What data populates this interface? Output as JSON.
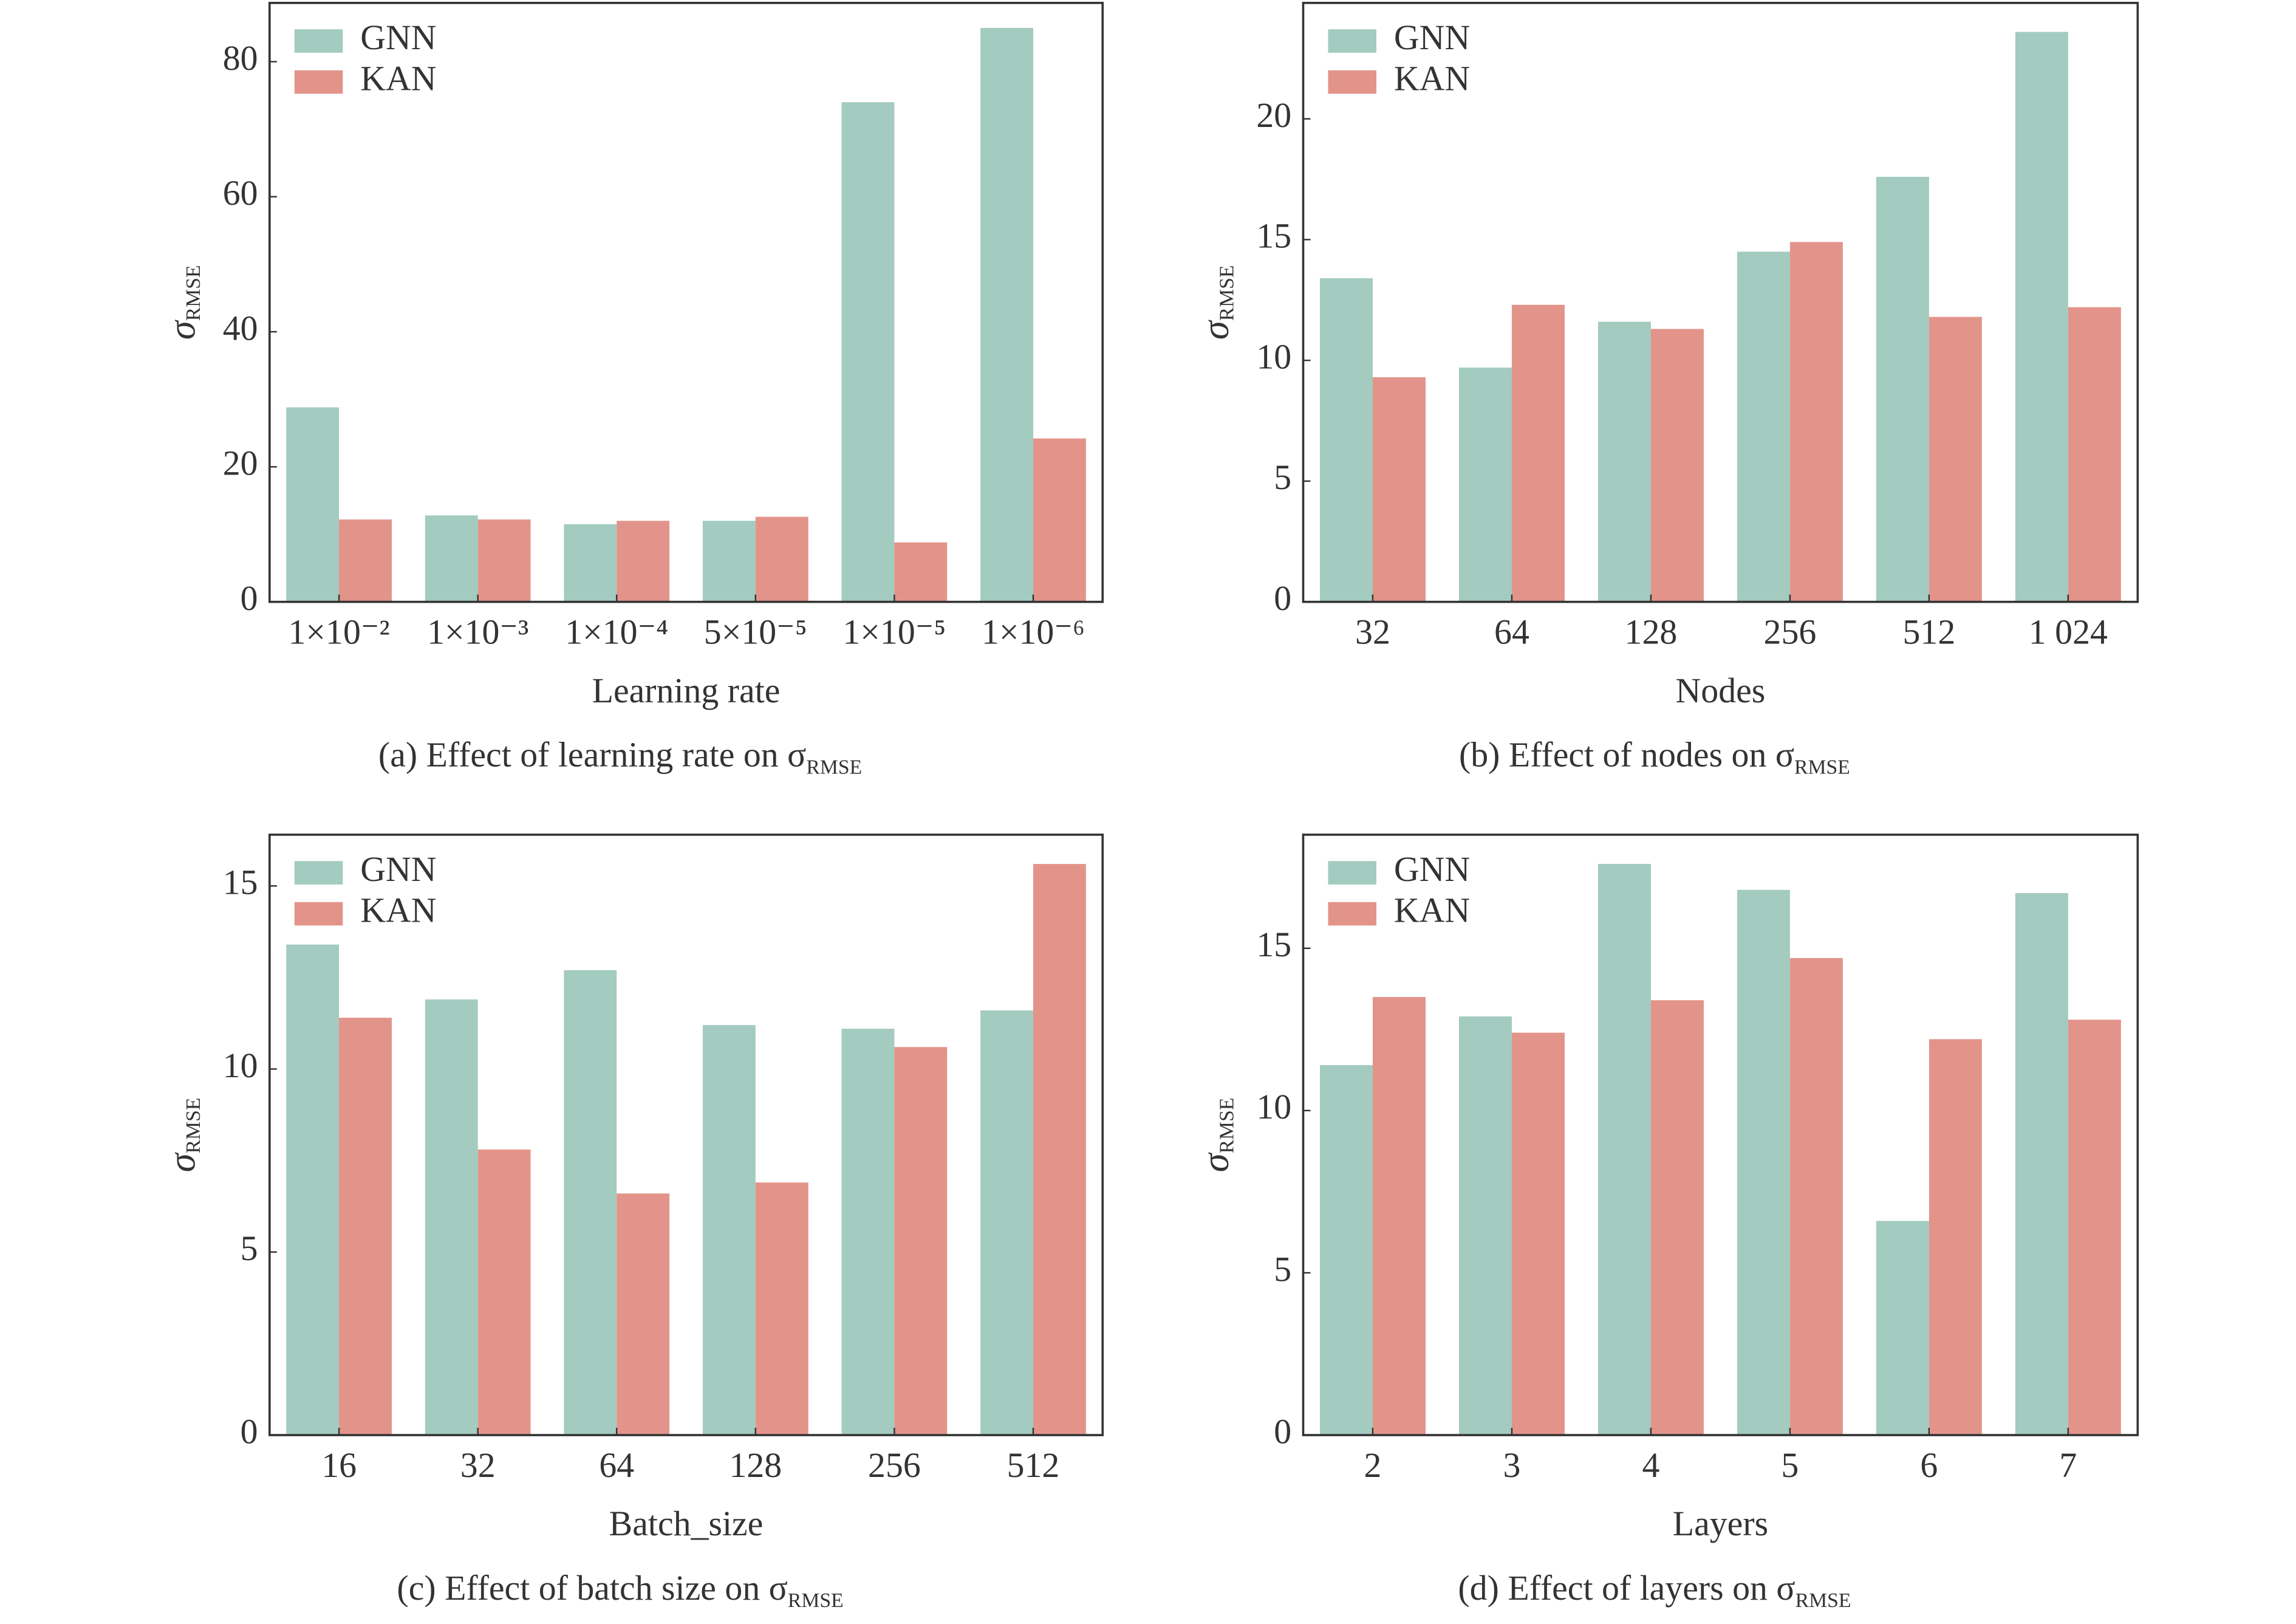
{
  "chart_data": [
    {
      "type": "bar",
      "xlabel": "Learning rate",
      "ylabel": "σ",
      "ylabel_sub": "RMSE",
      "caption": "(a) Effect of learning rate on σ",
      "caption_sub": "RMSE",
      "categories": [
        "1×10⁻²",
        "1×10⁻³",
        "1×10⁻⁴",
        "5×10⁻⁵",
        "1×10⁻⁵",
        "1×10⁻⁶"
      ],
      "series": [
        {
          "name": "GNN",
          "color": "#a3cbbf",
          "values": [
            28.8,
            12.8,
            11.5,
            12.0,
            74.0,
            85.0
          ]
        },
        {
          "name": "KAN",
          "color": "#e3948a",
          "values": [
            12.2,
            12.2,
            12.0,
            12.6,
            8.8,
            24.2
          ]
        }
      ],
      "ylim": [
        0,
        88.7
      ],
      "yticks": [
        0,
        20,
        40,
        60,
        80
      ],
      "legend": "upper left"
    },
    {
      "type": "bar",
      "xlabel": "Nodes",
      "ylabel": "σ",
      "ylabel_sub": "RMSE",
      "caption": "(b) Effect of nodes on σ",
      "caption_sub": "RMSE",
      "categories": [
        "32",
        "64",
        "128",
        "256",
        "512",
        "1 024"
      ],
      "series": [
        {
          "name": "GNN",
          "color": "#a3cbbf",
          "values": [
            13.4,
            9.7,
            11.6,
            14.5,
            17.6,
            23.6
          ]
        },
        {
          "name": "KAN",
          "color": "#e3948a",
          "values": [
            9.3,
            12.3,
            11.3,
            14.9,
            11.8,
            12.2
          ]
        }
      ],
      "ylim": [
        0,
        24.8
      ],
      "yticks": [
        0,
        5,
        10,
        15,
        20
      ],
      "legend": "upper left"
    },
    {
      "type": "bar",
      "xlabel": "Batch_size",
      "ylabel": "σ",
      "ylabel_sub": "RMSE",
      "caption": "(c) Effect of batch size on σ",
      "caption_sub": "RMSE",
      "categories": [
        "16",
        "32",
        "64",
        "128",
        "256",
        "512"
      ],
      "series": [
        {
          "name": "GNN",
          "color": "#a3cbbf",
          "values": [
            13.4,
            11.9,
            12.7,
            11.2,
            11.1,
            11.6
          ]
        },
        {
          "name": "KAN",
          "color": "#e3948a",
          "values": [
            11.4,
            7.8,
            6.6,
            6.9,
            10.6,
            15.6
          ]
        }
      ],
      "ylim": [
        0,
        16.4
      ],
      "yticks": [
        0,
        5,
        10,
        15
      ],
      "legend": "upper left"
    },
    {
      "type": "bar",
      "xlabel": "Layers",
      "ylabel": "σ",
      "ylabel_sub": "RMSE",
      "caption": "(d) Effect of layers on σ",
      "caption_sub": "RMSE",
      "categories": [
        "2",
        "3",
        "4",
        "5",
        "6",
        "7"
      ],
      "series": [
        {
          "name": "GNN",
          "color": "#a3cbbf",
          "values": [
            11.4,
            12.9,
            17.6,
            16.8,
            6.6,
            16.7
          ]
        },
        {
          "name": "KAN",
          "color": "#e3948a",
          "values": [
            13.5,
            12.4,
            13.4,
            14.7,
            12.2,
            12.8
          ]
        }
      ],
      "ylim": [
        0,
        18.5
      ],
      "yticks": [
        0,
        5,
        10,
        15
      ],
      "legend": "upper left"
    }
  ]
}
